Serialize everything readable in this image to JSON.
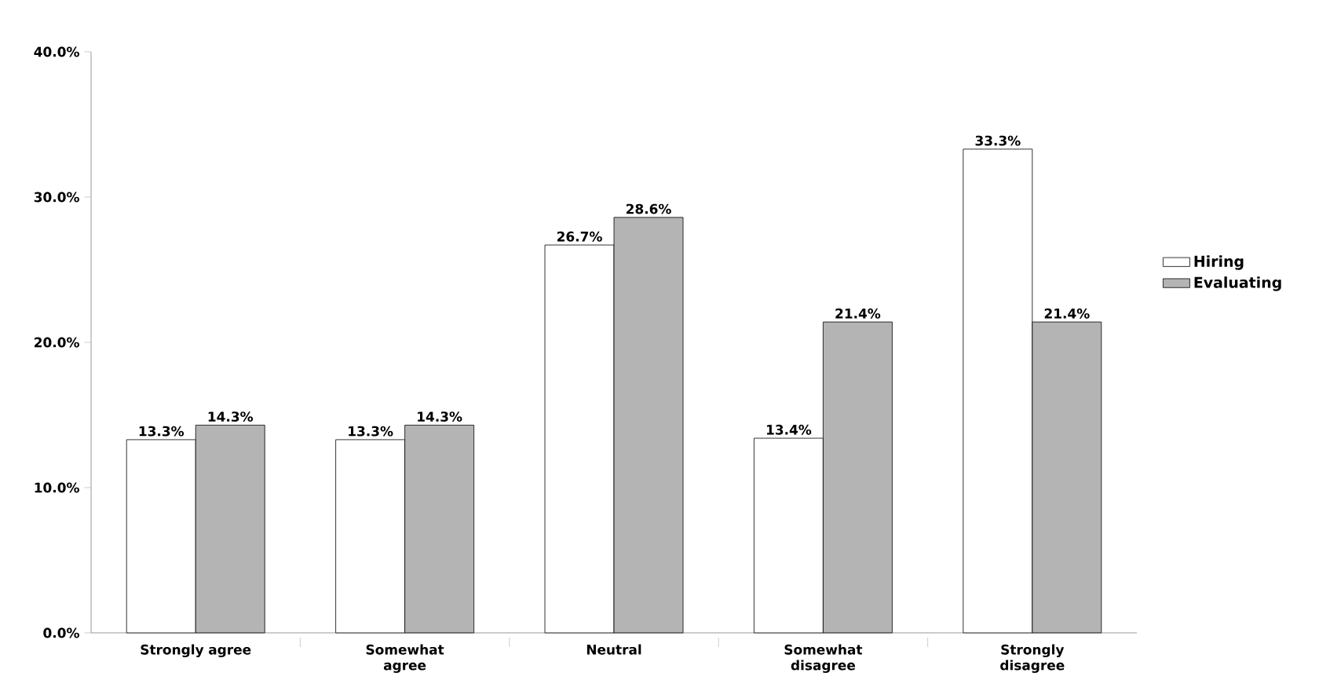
{
  "chart_data": {
    "type": "bar",
    "categories": [
      "Strongly agree",
      "Somewhat agree",
      "Neutral",
      "Somewhat disagree",
      "Strongly disagree"
    ],
    "series": [
      {
        "name": "Hiring",
        "color": "#ffffff",
        "values": [
          13.3,
          13.3,
          26.7,
          13.4,
          33.3
        ],
        "value_labels": [
          "13.3%",
          "13.3%",
          "26.7%",
          "13.4%",
          "33.3%"
        ]
      },
      {
        "name": "Evaluating",
        "color": "#b4b4b4",
        "values": [
          14.3,
          14.3,
          28.6,
          21.4,
          21.4
        ],
        "value_labels": [
          "14.3%",
          "14.3%",
          "28.6%",
          "21.4%",
          "21.4%"
        ]
      }
    ],
    "ylim": [
      0,
      40
    ],
    "yticks": [
      {
        "value": 0,
        "label": "0.0%"
      },
      {
        "value": 10,
        "label": "10.0%"
      },
      {
        "value": 20,
        "label": "20.0%"
      },
      {
        "value": 30,
        "label": "30.0%"
      },
      {
        "value": 40,
        "label": "40.0%"
      }
    ],
    "grid": false,
    "legend": "right"
  }
}
